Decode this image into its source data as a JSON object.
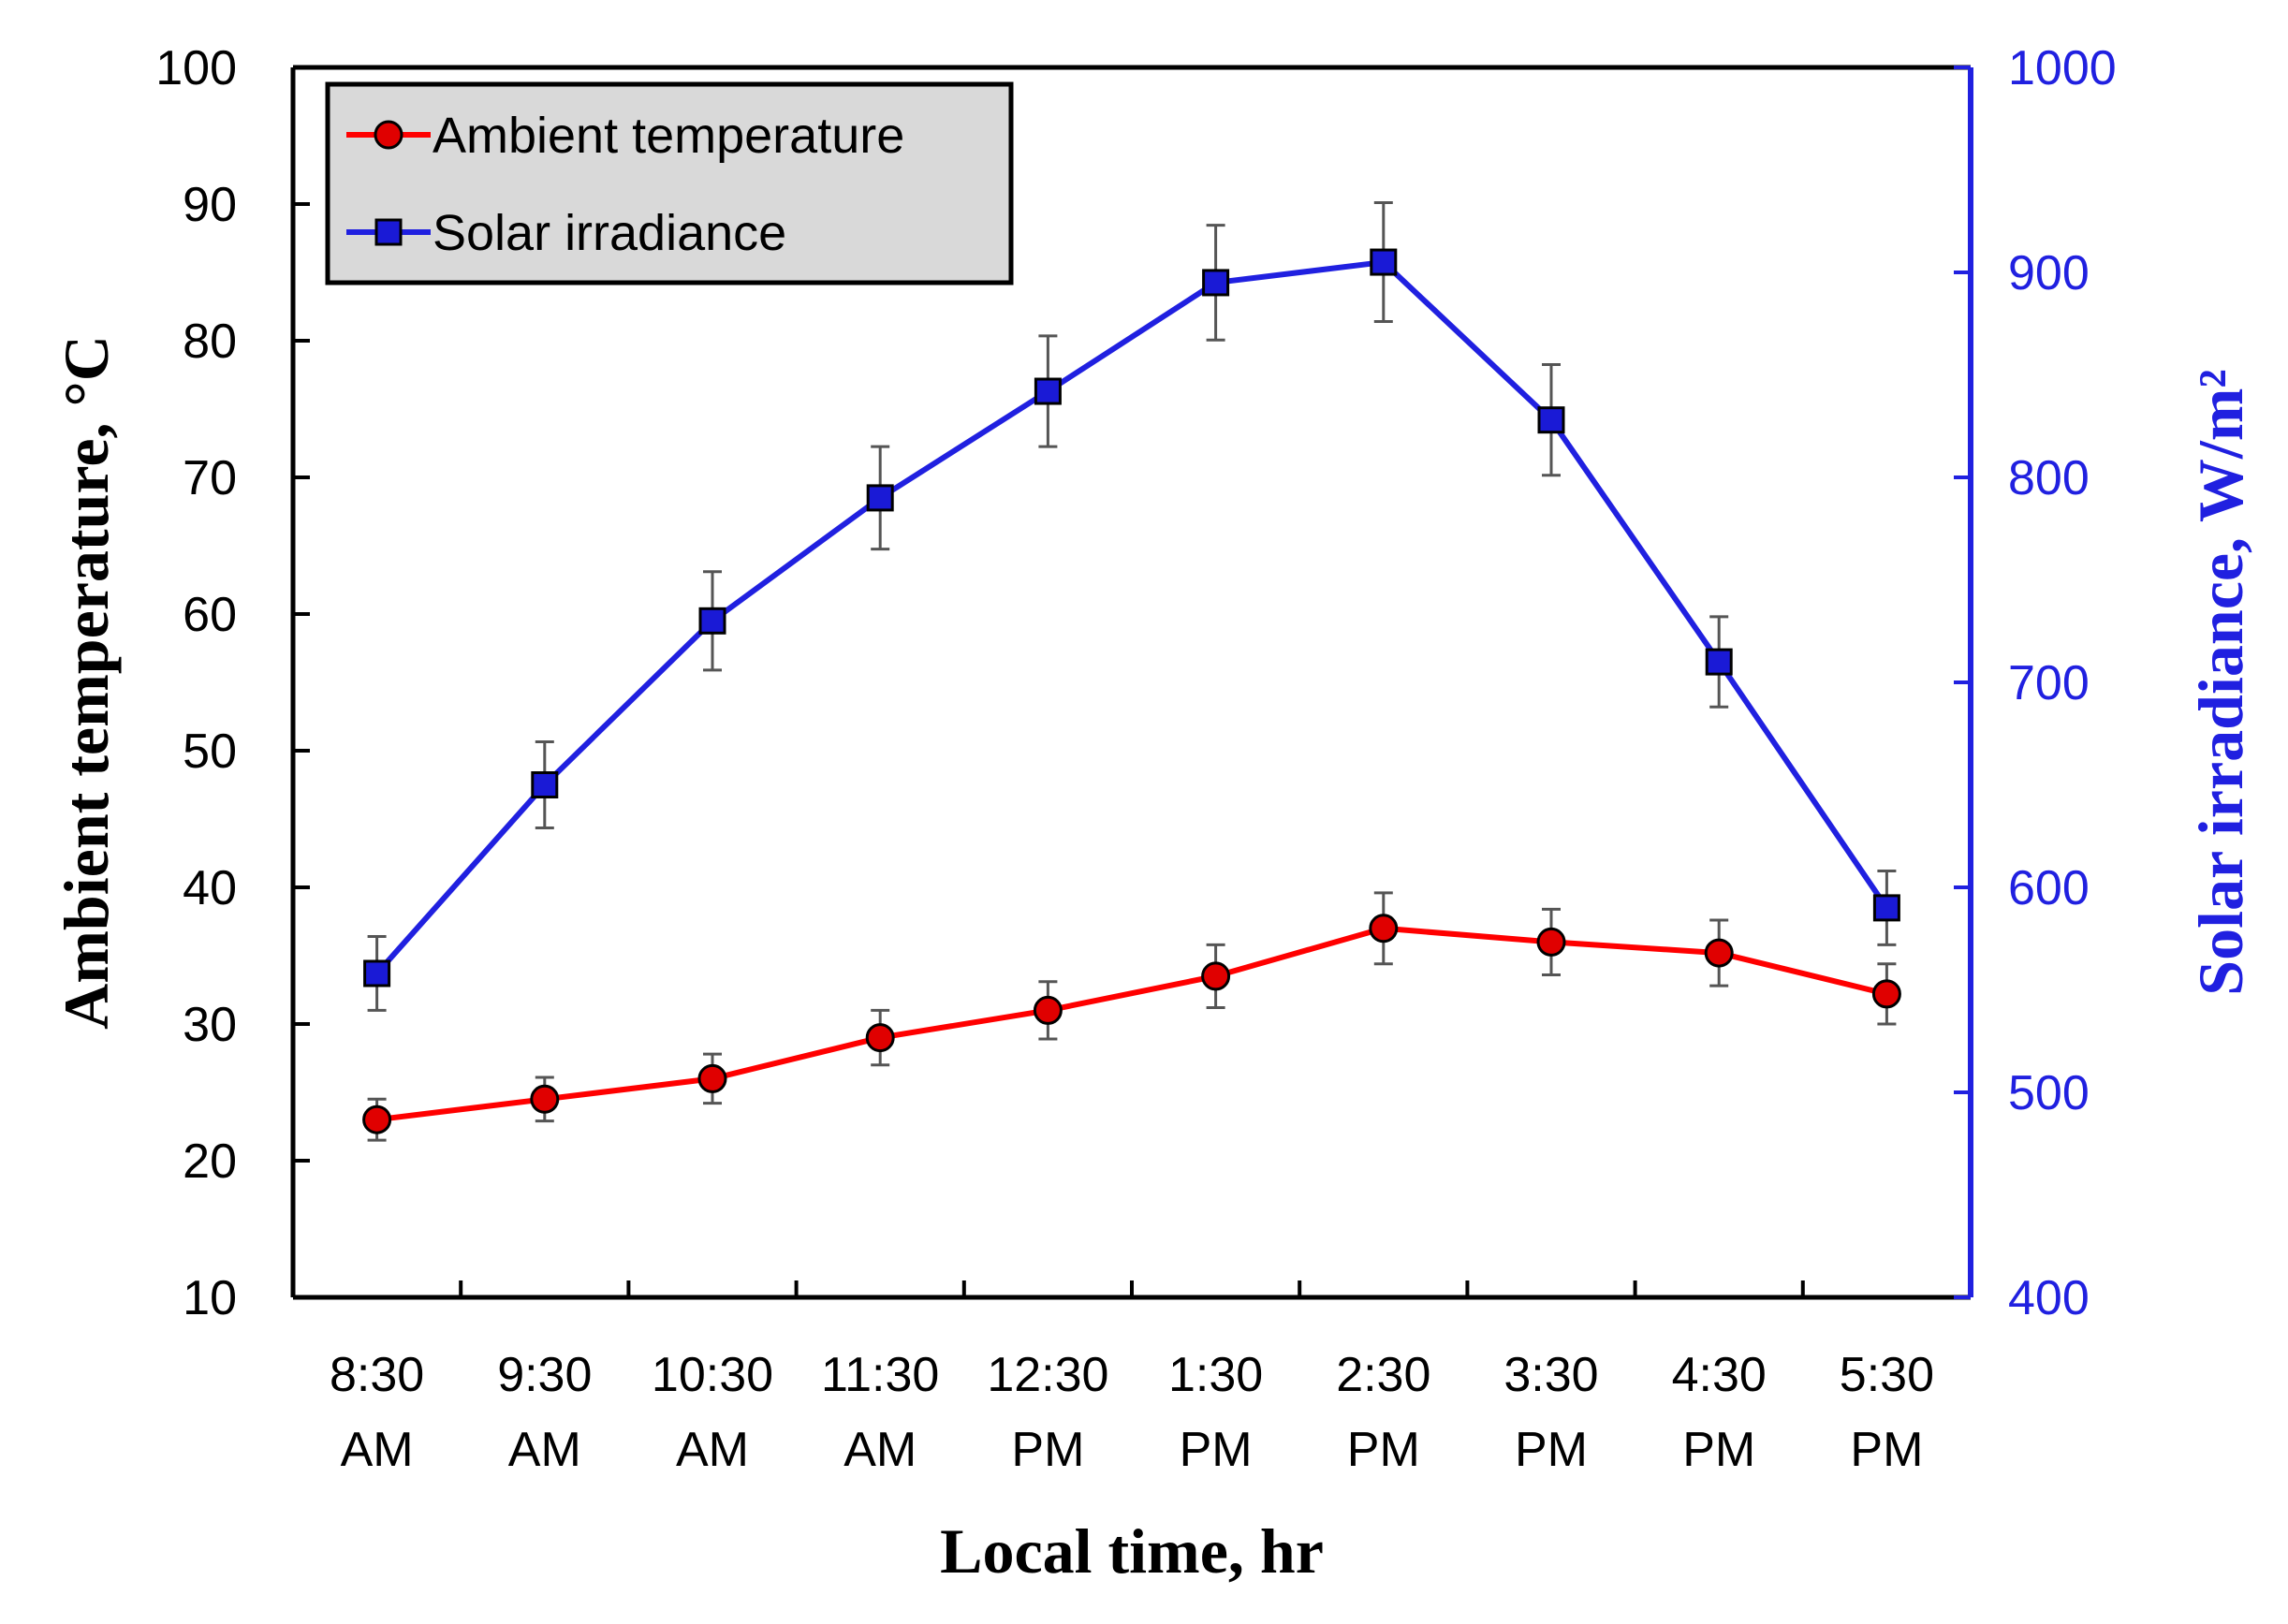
{
  "chart_data": {
    "type": "line",
    "title": "",
    "categories": [
      [
        "8:30",
        "AM"
      ],
      [
        "9:30",
        "AM"
      ],
      [
        "10:30",
        "AM"
      ],
      [
        "11:30",
        "AM"
      ],
      [
        "12:30",
        "PM"
      ],
      [
        "1:30",
        "PM"
      ],
      [
        "2:30",
        "PM"
      ],
      [
        "3:30",
        "PM"
      ],
      [
        "4:30",
        "PM"
      ],
      [
        "5:30",
        "PM"
      ]
    ],
    "xlabel": "Local time, hr",
    "ylabel_left": "Ambient temperature, °C",
    "ylabel_right": "Solar irradiance, W/m²",
    "ylim_left": [
      10,
      100
    ],
    "yticks_left": [
      10,
      20,
      30,
      40,
      50,
      60,
      70,
      80,
      90,
      100
    ],
    "ylim_right": [
      400,
      1000
    ],
    "yticks_right": [
      400,
      500,
      600,
      700,
      800,
      900,
      1000
    ],
    "grid": false,
    "legend_position": "top-left",
    "series": [
      {
        "name": "Ambient temperature",
        "axis": "left",
        "color": "#ff0000",
        "marker": "circle",
        "marker_fill": "#e00000",
        "values": [
          23.0,
          24.5,
          26.0,
          29.0,
          31.0,
          33.5,
          37.0,
          36.0,
          35.2,
          32.2
        ],
        "errors": [
          1.5,
          1.6,
          1.8,
          2.0,
          2.1,
          2.3,
          2.6,
          2.4,
          2.4,
          2.2
        ]
      },
      {
        "name": "Solar irradiance",
        "axis": "right",
        "color": "#2020e0",
        "marker": "square",
        "marker_fill": "#1a1ad6",
        "values": [
          558,
          650,
          730,
          790,
          842,
          895,
          905,
          828,
          710,
          590
        ],
        "errors": [
          18,
          21,
          24,
          25,
          27,
          28,
          29,
          27,
          22,
          18
        ]
      }
    ],
    "colors": {
      "left_axis": "#000000",
      "right_axis": "#2020e0",
      "error_bars": "#555555",
      "legend_bg": "#d9d9d9"
    }
  }
}
